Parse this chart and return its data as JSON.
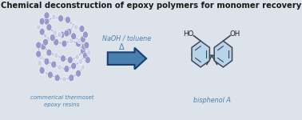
{
  "title": "Chemical deconstruction of epoxy polymers for monomer recovery",
  "title_fontsize": 7.2,
  "title_fontweight": "bold",
  "background_color": "#dde3ea",
  "label_left": "commerical thermoset\nepoxy resins",
  "label_right": "bisphenol A",
  "label_color": "#4a80b0",
  "arrow_label_line1": "NaOH / toluene",
  "arrow_label_line2": "Δ",
  "arrow_label_color": "#4a80b0",
  "arrow_face_color": "#4a80b0",
  "arrow_edge_color": "#1a3f6f",
  "polymer_node_color_main": "#9898cc",
  "polymer_node_color_light": "#d0d0e8",
  "bpa_ring_fill": "#b8d4e8",
  "bpa_ring_edge": "#404858",
  "bpa_line_color": "#404858",
  "bpa_text_color": "#202020"
}
